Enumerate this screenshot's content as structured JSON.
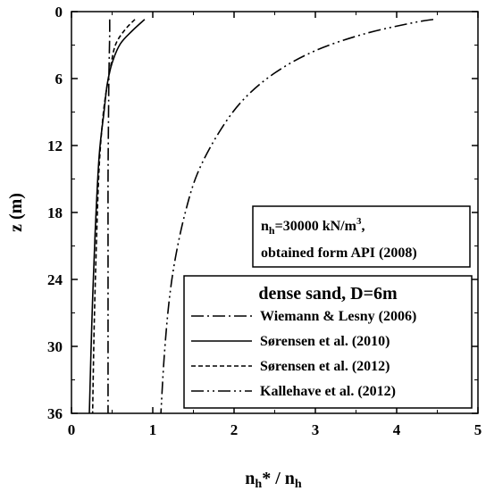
{
  "chart_data": {
    "type": "line",
    "xlim": [
      0,
      5
    ],
    "ylim": [
      0,
      36
    ],
    "y_inverted": true,
    "x_axis_position": "top-and-bottom",
    "x_ticks": [
      0,
      1,
      2,
      3,
      4,
      5
    ],
    "y_ticks": [
      0,
      6,
      12,
      18,
      24,
      30,
      36
    ],
    "x_tick_labels": [
      "0",
      "1",
      "2",
      "3",
      "4",
      "5"
    ],
    "y_tick_labels": [
      "0",
      "6",
      "12",
      "18",
      "24",
      "30",
      "36"
    ],
    "xlabel_main": "n",
    "xlabel_sub1": "h",
    "xlabel_mid": "* / n",
    "xlabel_sub2": "h",
    "ylabel": "z (m)",
    "grid": false,
    "annotation": {
      "line1_main": "n",
      "line1_sub": "h",
      "line1_rest": "=30000 kN/m",
      "line1_sup": "3",
      "line1_end": ",",
      "line2": "obtained form API (2008)"
    },
    "legend": {
      "title": "dense sand, D=6m",
      "placement": "bottom-right"
    },
    "series": [
      {
        "name": "Wiemann & Lesny (2006)",
        "style": "dash-dot",
        "x": [
          0.47,
          0.47,
          0.465,
          0.46,
          0.455,
          0.45,
          0.45,
          0.45,
          0.45
        ],
        "y": [
          0.7,
          2,
          4,
          6,
          10,
          15,
          22,
          30,
          36
        ]
      },
      {
        "name": "Sørensen et al. (2010)",
        "style": "solid",
        "x": [
          0.9,
          0.75,
          0.6,
          0.5,
          0.44,
          0.4,
          0.34,
          0.29,
          0.25,
          0.22
        ],
        "y": [
          0.7,
          1.7,
          2.9,
          4.6,
          6.5,
          9,
          13,
          20,
          28,
          36
        ]
      },
      {
        "name": "Sørensen et al. (2012)",
        "style": "dotted",
        "x": [
          0.78,
          0.65,
          0.54,
          0.48,
          0.42,
          0.38,
          0.34,
          0.31,
          0.28,
          0.26
        ],
        "y": [
          0.7,
          1.7,
          3,
          5,
          7.5,
          10,
          14,
          20,
          28,
          36
        ]
      },
      {
        "name": "Kallehave et al. (2012)",
        "style": "dash-dot-dot",
        "x": [
          4.45,
          4.2,
          3.6,
          3.0,
          2.5,
          2.1,
          1.8,
          1.55,
          1.4,
          1.28,
          1.2,
          1.14,
          1.1
        ],
        "y": [
          0.7,
          1.0,
          2.0,
          3.5,
          5.5,
          8,
          11,
          14.5,
          18,
          22,
          26,
          31,
          36
        ]
      }
    ]
  }
}
